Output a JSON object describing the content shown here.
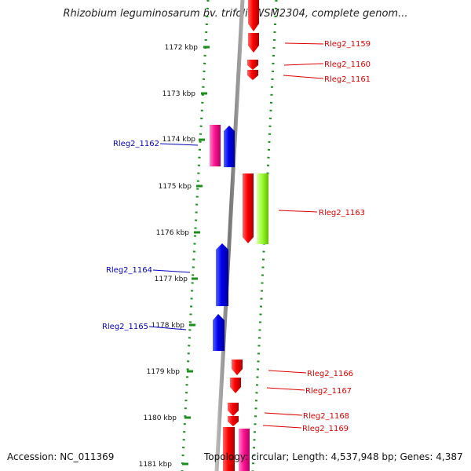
{
  "title": "Rhizobium leguminosarum bv. trifolii WSM2304, complete genom...",
  "footer": {
    "accession": "Accession: NC_011369",
    "topology": "Topology: circular; Length: 4,537,948 bp; Genes: 4,387"
  },
  "colors": {
    "backbone": "#888888",
    "track_dots": "#1a8f1a",
    "forward_gene": "#ff0000",
    "reverse_gene": "#0000ee",
    "forward_label": "#dd0000",
    "reverse_label": "#0000bb",
    "pink_gene": "#ff1493",
    "green_gene": "#99ff33"
  },
  "ticks": [
    "1172 kbp",
    "1173 kbp",
    "1174 kbp",
    "1175 kbp",
    "1176 kbp",
    "1177 kbp",
    "1178 kbp",
    "1179 kbp",
    "1180 kbp",
    "1181 kbp"
  ],
  "genes": [
    {
      "label": "Rleg2_1159",
      "color_key": "forward_gene",
      "strand": "forward"
    },
    {
      "label": "Rleg2_1160",
      "color_key": "forward_gene",
      "strand": "forward"
    },
    {
      "label": "Rleg2_1161",
      "color_key": "forward_gene",
      "strand": "forward"
    },
    {
      "label": "Rleg2_1162",
      "color_key": "reverse_gene",
      "strand": "reverse"
    },
    {
      "label": "Rleg2_1163",
      "color_key": "forward_gene",
      "strand": "forward"
    },
    {
      "label": "Rleg2_1164",
      "color_key": "reverse_gene",
      "strand": "reverse"
    },
    {
      "label": "Rleg2_1165",
      "color_key": "reverse_gene",
      "strand": "reverse"
    },
    {
      "label": "Rleg2_1166",
      "color_key": "forward_gene",
      "strand": "forward"
    },
    {
      "label": "Rleg2_1167",
      "color_key": "forward_gene",
      "strand": "forward"
    },
    {
      "label": "Rleg2_1168",
      "color_key": "forward_gene",
      "strand": "forward"
    },
    {
      "label": "Rleg2_1169",
      "color_key": "forward_gene",
      "strand": "forward"
    }
  ]
}
